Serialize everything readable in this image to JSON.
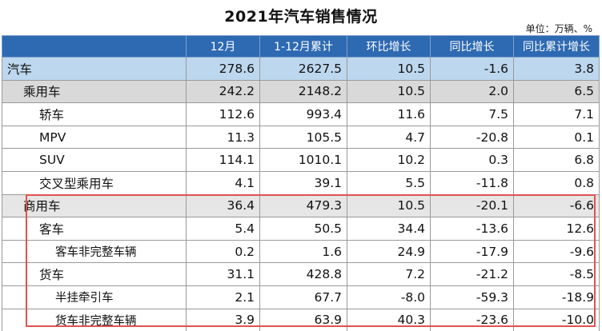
{
  "title": "2021年汽车销售情况",
  "unit_label": "单位：万辆、%",
  "columns": [
    "",
    "12月",
    "1-12月累计",
    "环比增长",
    "同比增长",
    "同比累计增长"
  ],
  "rows": [
    {
      "name": "汽车",
      "level": 0,
      "dec": "278.6",
      "ytd": "2627.5",
      "mom": "10.5",
      "yoy": "-1.6",
      "ytd_yoy": "3.8"
    },
    {
      "name": "乘用车",
      "level": 1,
      "dec": "242.2",
      "ytd": "2148.2",
      "mom": "10.5",
      "yoy": "2.0",
      "ytd_yoy": "6.5"
    },
    {
      "name": "轿车",
      "level": 2,
      "dec": "112.6",
      "ytd": "993.4",
      "mom": "11.6",
      "yoy": "7.5",
      "ytd_yoy": "7.1"
    },
    {
      "name": "MPV",
      "level": 2,
      "dec": "11.3",
      "ytd": "105.5",
      "mom": "4.7",
      "yoy": "-20.8",
      "ytd_yoy": "0.1"
    },
    {
      "name": "SUV",
      "level": 2,
      "dec": "114.1",
      "ytd": "1010.1",
      "mom": "10.2",
      "yoy": "0.3",
      "ytd_yoy": "6.8"
    },
    {
      "name": "交叉型乘用车",
      "level": 2,
      "dec": "4.1",
      "ytd": "39.1",
      "mom": "5.5",
      "yoy": "-11.8",
      "ytd_yoy": "0.8"
    },
    {
      "name": "商用车",
      "level": 1,
      "dec": "36.4",
      "ytd": "479.3",
      "mom": "10.5",
      "yoy": "-20.1",
      "ytd_yoy": "-6.6"
    },
    {
      "name": "客车",
      "level": 2,
      "dec": "5.4",
      "ytd": "50.5",
      "mom": "34.4",
      "yoy": "-13.6",
      "ytd_yoy": "12.6"
    },
    {
      "name": "客车非完整车辆",
      "level": 3,
      "dec": "0.2",
      "ytd": "1.6",
      "mom": "24.9",
      "yoy": "-17.9",
      "ytd_yoy": "-9.6"
    },
    {
      "name": "货车",
      "level": 2,
      "dec": "31.1",
      "ytd": "428.8",
      "mom": "7.2",
      "yoy": "-21.2",
      "ytd_yoy": "-8.5"
    },
    {
      "name": "半挂牵引车",
      "level": 3,
      "dec": "2.1",
      "ytd": "67.7",
      "mom": "-8.0",
      "yoy": "-59.3",
      "ytd_yoy": "-18.9"
    },
    {
      "name": "货车非完整车辆",
      "level": 3,
      "dec": "3.9",
      "ytd": "63.9",
      "mom": "40.3",
      "yoy": "-23.6",
      "ytd_yoy": "-10.0"
    }
  ],
  "colors": {
    "header_bg": "#2e6ab2",
    "total_row_bg": "#bdd7ee",
    "category_row_bg": "#d9d9d9",
    "highlight_border": "#e05252"
  }
}
